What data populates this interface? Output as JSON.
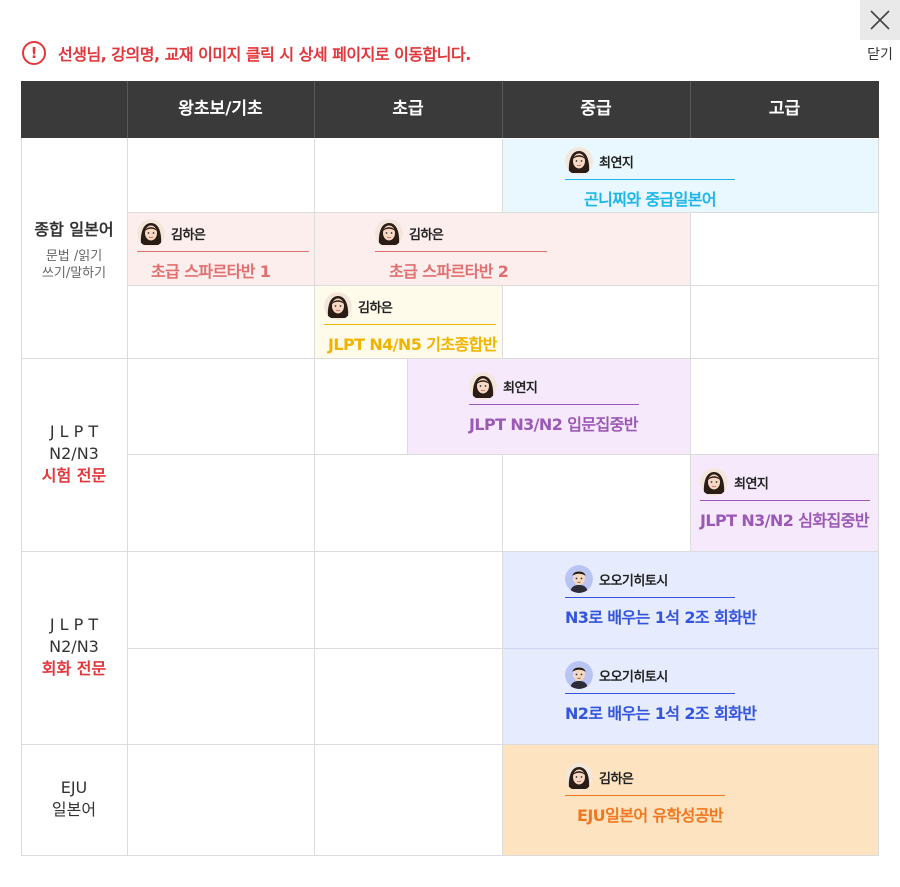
{
  "notice": {
    "icon": "exclamation-circle-icon",
    "text": "선생님, 강의명, 교재 이미지 클릭 시 상세 페이지로 이동합니다."
  },
  "close": {
    "icon": "close-icon",
    "label": "닫기"
  },
  "table": {
    "headers": [
      "왕초보/기초",
      "초급",
      "중급",
      "고급"
    ]
  },
  "rows": {
    "general": {
      "title": "종합 일본어",
      "sub1": "문법 /읽기",
      "sub2": "쓰기/말하기"
    },
    "jlpt_exam": {
      "line1": "J L P T",
      "line2": "N2/N3",
      "line3": "시험 전문"
    },
    "jlpt_conv": {
      "line1": "J L P T",
      "line2": "N2/N3",
      "line3": "회화 전문"
    },
    "eju": {
      "line1": "EJU",
      "line2": "일본어"
    }
  },
  "courses": [
    {
      "teacher": "최연지",
      "title": "곤니찌와 중급일본어",
      "color": "#1eb6e8",
      "avatar": "female"
    },
    {
      "teacher": "김하은",
      "title": "초급 스파르타반 1",
      "color": "#e07070",
      "avatar": "female"
    },
    {
      "teacher": "김하은",
      "title": "초급 스파르타반 2",
      "color": "#e07070",
      "avatar": "female"
    },
    {
      "teacher": "김하은",
      "title": "JLPT N4/N5 기초종합반",
      "color": "#f0b400",
      "avatar": "female"
    },
    {
      "teacher": "최연지",
      "title": "JLPT N3/N2 입문집중반",
      "color": "#9b59b6",
      "avatar": "female"
    },
    {
      "teacher": "최연지",
      "title": "JLPT N3/N2 심화집중반",
      "color": "#9b59b6",
      "avatar": "female"
    },
    {
      "teacher": "오오기히토시",
      "title": "N3로 배우는 1석 2조 회화반",
      "color": "#3355dd",
      "avatar": "male"
    },
    {
      "teacher": "오오기히토시",
      "title": "N2로 배우는 1석 2조 회화반",
      "color": "#3355dd",
      "avatar": "male"
    },
    {
      "teacher": "김하은",
      "title": "EJU일본어 유학성공반",
      "color": "#f07820",
      "avatar": "female"
    }
  ]
}
